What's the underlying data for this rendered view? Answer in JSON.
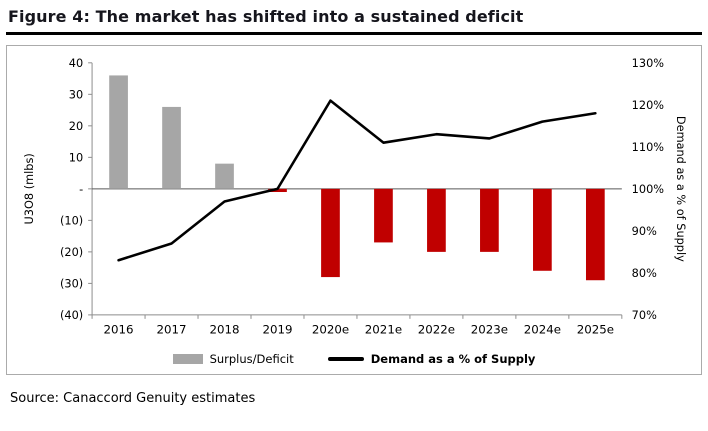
{
  "figure": {
    "title": "Figure 4: The market has shifted into a sustained deficit",
    "source": "Source: Canaccord Genuity estimates"
  },
  "chart_data": {
    "type": "bar",
    "subtype": "bar-and-line-combo",
    "categories": [
      "2016",
      "2017",
      "2018",
      "2019",
      "2020e",
      "2021e",
      "2022e",
      "2023e",
      "2024e",
      "2025e"
    ],
    "series": [
      {
        "name": "Surplus/Deficit",
        "type": "bar",
        "axis": "left",
        "values": [
          36,
          26,
          8,
          -1,
          -28,
          -17,
          -20,
          -20,
          -26,
          -29
        ],
        "color_positive": "#a6a6a6",
        "color_negative": "#c00000"
      },
      {
        "name": "Demand as a % of Supply",
        "type": "line",
        "axis": "right",
        "values": [
          83,
          87,
          97,
          100,
          121,
          111,
          113,
          112,
          116,
          118
        ],
        "color": "#000000",
        "stroke_width": 2.6
      }
    ],
    "left_axis": {
      "label": "U3O8 (mlbs)",
      "min": -40,
      "max": 40,
      "ticks": [
        40,
        30,
        20,
        10,
        0,
        -10,
        -20,
        -30,
        -40
      ],
      "tick_labels": [
        "40",
        "30",
        "20",
        "10",
        "-",
        "(10)",
        "(20)",
        "(30)",
        "(40)"
      ]
    },
    "right_axis": {
      "label": "Demand as a % of Supply",
      "min": 70,
      "max": 130,
      "ticks": [
        130,
        120,
        110,
        100,
        90,
        80,
        70
      ],
      "tick_labels": [
        "130%",
        "120%",
        "110%",
        "100%",
        "90%",
        "80%",
        "70%"
      ]
    },
    "legend": [
      {
        "label": "Surplus/Deficit",
        "swatch": "gray-rect"
      },
      {
        "label": "Demand as a % of Supply",
        "swatch": "black-line"
      }
    ],
    "grid": false,
    "legend_position": "bottom"
  }
}
